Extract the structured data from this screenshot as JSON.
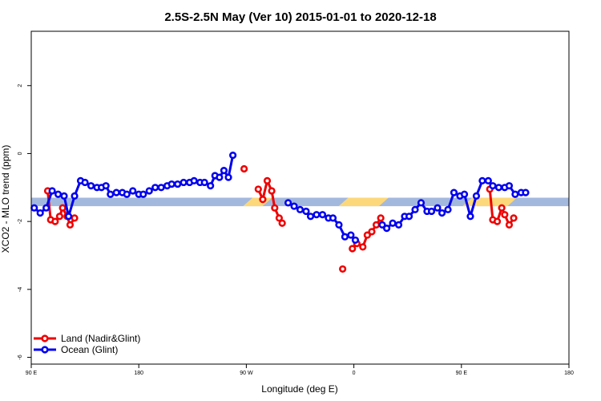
{
  "chart_data": {
    "type": "line",
    "title": "2.5S-2.5N May (Ver 10)   2015-01-01 to 2020-12-18",
    "xlabel": "Longitude (deg E)",
    "ylabel": "XCO2 - MLO trend (ppm)",
    "xlim": [
      90,
      450
    ],
    "ylim": [
      -6.2,
      3.6
    ],
    "x_ticks": [
      90,
      162,
      234,
      306,
      378,
      450
    ],
    "x_tick_labels": [
      "90 E",
      "180",
      "90 W",
      "0",
      "90 E",
      "180"
    ],
    "y_ticks": [
      -6,
      -4,
      -2,
      0,
      2
    ],
    "y_tick_labels": [
      "-6",
      "-4",
      "-2",
      "0",
      "2"
    ],
    "legend_position": "bottom-left",
    "colors": {
      "land": "#ee0000",
      "ocean": "#0000ee",
      "band_ocean": "#a3b8dd",
      "band_land": "#fcd87a"
    },
    "band": {
      "y_top": -1.3,
      "y_bottom": -1.55,
      "land_segments": [
        [
          235,
          248
        ],
        [
          299,
          326
        ],
        [
          382,
          388
        ],
        [
          388,
          412
        ]
      ]
    },
    "series": [
      {
        "name": "Land (Nadir&Glint)",
        "color": "#ee0000",
        "segments": [
          [
            [
              101,
              -1.1
            ],
            [
              103,
              -1.95
            ],
            [
              106,
              -2.0
            ],
            [
              109,
              -1.85
            ],
            [
              111,
              -1.6
            ],
            [
              114,
              -1.85
            ],
            [
              116,
              -2.1
            ],
            [
              119,
              -1.9
            ]
          ],
          [
            [
              232.5,
              -0.45
            ]
          ],
          [
            [
              242,
              -1.05
            ],
            [
              245,
              -1.35
            ],
            [
              248,
              -0.8
            ],
            [
              251,
              -1.1
            ],
            [
              253,
              -1.6
            ],
            [
              256,
              -1.9
            ],
            [
              258,
              -2.05
            ]
          ],
          [
            [
              298.5,
              -3.4
            ]
          ],
          [
            [
              305,
              -2.8
            ],
            [
              308,
              -2.65
            ],
            [
              312,
              -2.75
            ],
            [
              315,
              -2.4
            ],
            [
              318,
              -2.3
            ],
            [
              321,
              -2.1
            ],
            [
              324,
              -1.9
            ]
          ],
          [
            [
              397,
              -1.05
            ],
            [
              399,
              -1.95
            ],
            [
              402,
              -2.0
            ],
            [
              405,
              -1.6
            ],
            [
              407,
              -1.8
            ],
            [
              410,
              -2.1
            ],
            [
              413,
              -1.9
            ]
          ]
        ]
      },
      {
        "name": "Ocean (Glint)",
        "color": "#0000ee",
        "segments": [
          [
            [
              92,
              -1.6
            ],
            [
              96,
              -1.75
            ],
            [
              100,
              -1.6
            ],
            [
              104,
              -1.1
            ],
            [
              108,
              -1.2
            ],
            [
              112,
              -1.25
            ],
            [
              115,
              -1.85
            ],
            [
              119,
              -1.25
            ],
            [
              123,
              -0.8
            ],
            [
              126,
              -0.85
            ],
            [
              130,
              -0.95
            ],
            [
              134,
              -1.0
            ],
            [
              137,
              -1.0
            ],
            [
              140,
              -0.95
            ],
            [
              143,
              -1.2
            ],
            [
              147,
              -1.15
            ],
            [
              151,
              -1.15
            ],
            [
              154,
              -1.2
            ],
            [
              158,
              -1.1
            ],
            [
              162,
              -1.2
            ],
            [
              165,
              -1.2
            ],
            [
              169,
              -1.1
            ],
            [
              173,
              -1.0
            ],
            [
              177,
              -1.0
            ],
            [
              181,
              -0.95
            ],
            [
              184,
              -0.9
            ],
            [
              188,
              -0.9
            ],
            [
              192,
              -0.85
            ],
            [
              196,
              -0.85
            ],
            [
              199,
              -0.8
            ],
            [
              203,
              -0.85
            ],
            [
              206,
              -0.85
            ],
            [
              210,
              -0.95
            ],
            [
              213,
              -0.65
            ],
            [
              216,
              -0.7
            ],
            [
              219,
              -0.5
            ],
            [
              222,
              -0.7
            ],
            [
              225,
              -0.05
            ]
          ],
          [
            [
              262,
              -1.45
            ],
            [
              266,
              -1.55
            ],
            [
              270,
              -1.65
            ],
            [
              274,
              -1.7
            ],
            [
              277,
              -1.85
            ],
            [
              281,
              -1.8
            ],
            [
              285,
              -1.8
            ],
            [
              289,
              -1.9
            ],
            [
              292,
              -1.9
            ],
            [
              296,
              -2.1
            ],
            [
              300,
              -2.45
            ],
            [
              304,
              -2.4
            ],
            [
              307,
              -2.55
            ]
          ],
          [
            [
              325,
              -2.1
            ],
            [
              328,
              -2.2
            ],
            [
              332,
              -2.05
            ],
            [
              336,
              -2.1
            ],
            [
              340,
              -1.85
            ],
            [
              343,
              -1.85
            ],
            [
              347,
              -1.65
            ],
            [
              351,
              -1.45
            ],
            [
              355,
              -1.7
            ],
            [
              358,
              -1.7
            ],
            [
              362,
              -1.6
            ],
            [
              365,
              -1.75
            ],
            [
              369,
              -1.65
            ],
            [
              373,
              -1.15
            ],
            [
              377,
              -1.25
            ],
            [
              380,
              -1.2
            ],
            [
              384,
              -1.85
            ],
            [
              388,
              -1.25
            ],
            [
              392,
              -0.8
            ],
            [
              396,
              -0.8
            ],
            [
              399,
              -0.95
            ],
            [
              403,
              -1.0
            ],
            [
              407,
              -1.0
            ],
            [
              410,
              -0.95
            ],
            [
              414,
              -1.2
            ],
            [
              418,
              -1.15
            ],
            [
              421,
              -1.15
            ]
          ]
        ]
      }
    ]
  }
}
